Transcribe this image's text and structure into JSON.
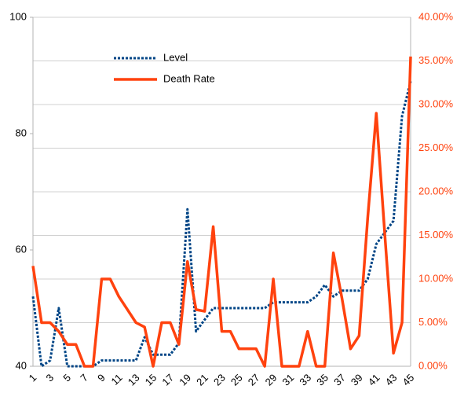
{
  "chart_data": {
    "type": "line",
    "categories": [
      "1",
      null,
      "3",
      null,
      "5",
      null,
      "7",
      null,
      "9",
      null,
      "11",
      null,
      "13",
      null,
      "15",
      null,
      "17",
      null,
      "19",
      null,
      "21",
      null,
      "23",
      null,
      "25",
      null,
      "27",
      null,
      "29",
      null,
      "31",
      null,
      "33",
      null,
      "35",
      null,
      "37",
      null,
      "39",
      null,
      "41",
      null,
      "43",
      null,
      "45"
    ],
    "series": [
      {
        "name": "Level",
        "color": "#004586",
        "values": [
          52,
          40,
          41,
          50,
          40,
          40,
          40,
          40,
          41,
          41,
          41,
          41,
          41,
          45,
          42,
          42,
          42,
          44,
          67,
          46,
          48,
          50,
          50,
          50,
          50,
          50,
          50,
          50,
          51,
          51,
          51,
          51,
          51,
          52,
          54,
          52,
          53,
          53,
          53,
          55,
          61,
          63,
          65,
          83,
          89
        ]
      },
      {
        "name": "Death Rate",
        "color": "#ff420e",
        "axis": "y2",
        "values": [
          11.5,
          5,
          5,
          4,
          2.5,
          2.5,
          0,
          0,
          10,
          10,
          8,
          6.5,
          5,
          4.5,
          0,
          5,
          5,
          2.5,
          12,
          6.5,
          6.3,
          16,
          4,
          4,
          2,
          2,
          2,
          0,
          10,
          0,
          0,
          0,
          4,
          0,
          0,
          13,
          7.8,
          2,
          3.5,
          17,
          29,
          15,
          1.5,
          5,
          35.5
        ]
      }
    ],
    "ylim": [
      40,
      100
    ],
    "yticks": [
      40,
      60,
      80,
      100
    ],
    "y2lim": [
      0,
      40
    ],
    "y2ticks": [
      {
        "value": 0,
        "label": "0.00%"
      },
      {
        "value": 5,
        "label": "5.00%"
      },
      {
        "value": 10,
        "label": "10.00%"
      },
      {
        "value": 15,
        "label": "15.00%"
      },
      {
        "value": 20,
        "label": "20.00%"
      },
      {
        "value": 25,
        "label": "25.00%"
      },
      {
        "value": 30,
        "label": "30.00%"
      },
      {
        "value": 35,
        "label": "35.00%"
      },
      {
        "value": 40,
        "label": "40.00%"
      }
    ],
    "grid": true
  }
}
